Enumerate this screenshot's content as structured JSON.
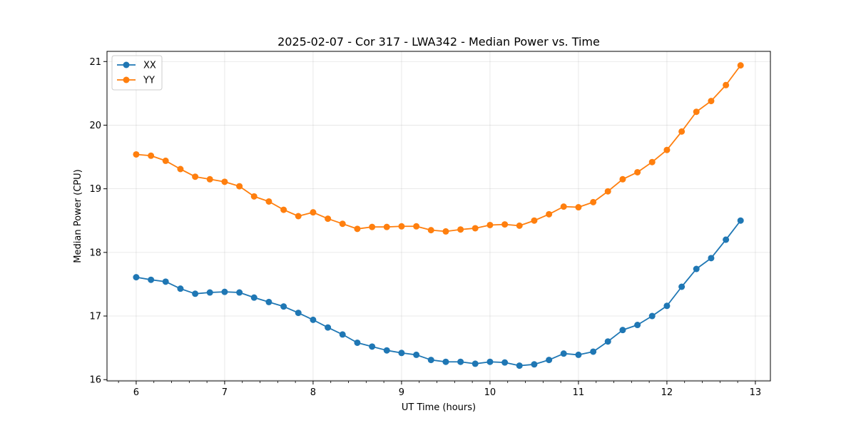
{
  "chart_data": {
    "type": "line",
    "title": "2025-02-07 - Cor 317 - LWA342 - Median Power vs. Time",
    "xlabel": "UT Time (hours)",
    "ylabel": "Median Power (CPU)",
    "xlim": [
      5.67,
      13.17
    ],
    "ylim": [
      15.98,
      21.16
    ],
    "xticks": [
      6,
      7,
      8,
      9,
      10,
      11,
      12,
      13
    ],
    "yticks": [
      16,
      17,
      18,
      19,
      20,
      21
    ],
    "xminor_step": 0.2,
    "grid": true,
    "legend_position": "top-left",
    "x": [
      6.0,
      6.167,
      6.333,
      6.5,
      6.667,
      6.833,
      7.0,
      7.167,
      7.333,
      7.5,
      7.667,
      7.833,
      8.0,
      8.167,
      8.333,
      8.5,
      8.667,
      8.833,
      9.0,
      9.167,
      9.333,
      9.5,
      9.667,
      9.833,
      10.0,
      10.167,
      10.333,
      10.5,
      10.667,
      10.833,
      11.0,
      11.167,
      11.333,
      11.5,
      11.667,
      11.833,
      12.0,
      12.167,
      12.333,
      12.5,
      12.667,
      12.833
    ],
    "series": [
      {
        "name": "XX",
        "color": "#1f77b4",
        "values": [
          17.61,
          17.57,
          17.54,
          17.43,
          17.35,
          17.37,
          17.38,
          17.37,
          17.29,
          17.22,
          17.15,
          17.05,
          16.94,
          16.82,
          16.71,
          16.58,
          16.52,
          16.46,
          16.42,
          16.39,
          16.31,
          16.28,
          16.28,
          16.25,
          16.28,
          16.27,
          16.22,
          16.24,
          16.31,
          16.41,
          16.39,
          16.44,
          16.6,
          16.78,
          16.86,
          17.0,
          17.16,
          17.46,
          17.74,
          17.91,
          18.2,
          18.5
        ]
      },
      {
        "name": "YY",
        "color": "#ff7f0e",
        "values": [
          19.54,
          19.52,
          19.44,
          19.31,
          19.19,
          19.15,
          19.11,
          19.04,
          18.88,
          18.8,
          18.67,
          18.57,
          18.63,
          18.53,
          18.45,
          18.37,
          18.4,
          18.4,
          18.41,
          18.41,
          18.35,
          18.33,
          18.36,
          18.38,
          18.43,
          18.44,
          18.42,
          18.5,
          18.6,
          18.72,
          18.71,
          18.79,
          18.96,
          19.15,
          19.26,
          19.42,
          19.61,
          19.9,
          20.21,
          20.38,
          20.63,
          20.94
        ]
      }
    ]
  }
}
